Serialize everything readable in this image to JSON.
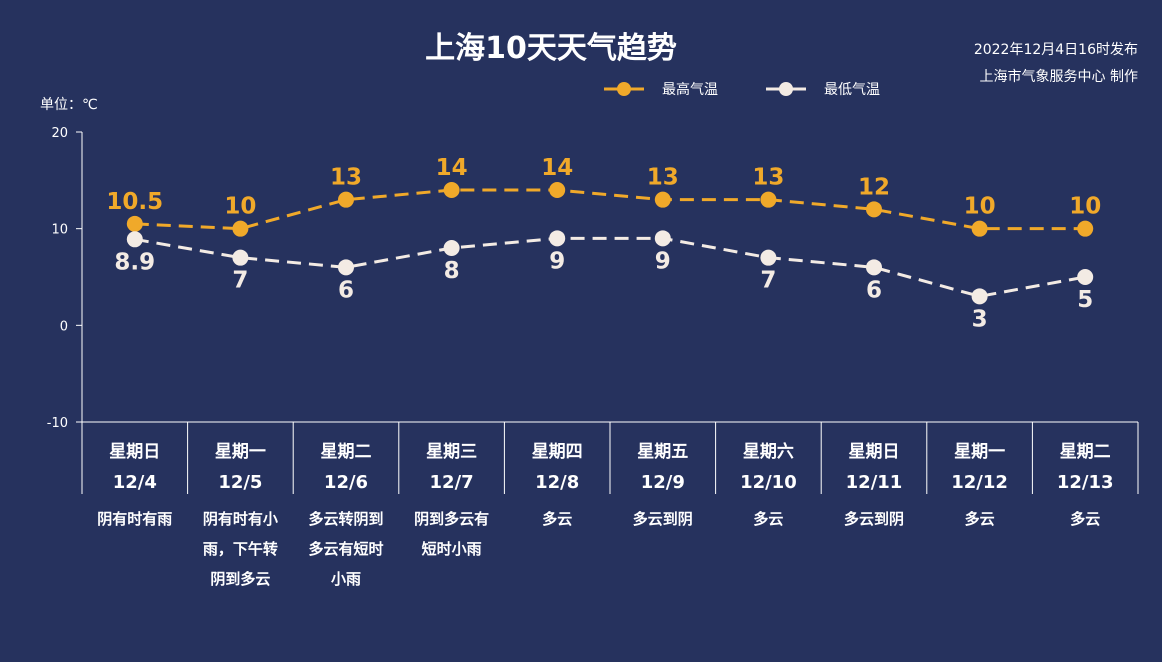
{
  "header": {
    "title": "上海10天天气趋势",
    "publish_time": "2022年12月4日16时发布",
    "producer": "上海市气象服务中心 制作",
    "unit_label": "单位：℃"
  },
  "colors": {
    "background": "#26325e",
    "high": "#f0a92a",
    "low": "#f3ebe4",
    "axis": "#ffffff"
  },
  "chart_data": {
    "type": "line",
    "ylim": [
      -10,
      20
    ],
    "yticks": [
      20,
      10,
      0,
      -10
    ],
    "grid": false,
    "legend_position": "top-right",
    "categories": [
      {
        "day": "星期日",
        "date": "12/4",
        "weather": [
          "阴有时有雨"
        ]
      },
      {
        "day": "星期一",
        "date": "12/5",
        "weather": [
          "阴有时有小",
          "雨，下午转",
          "阴到多云"
        ]
      },
      {
        "day": "星期二",
        "date": "12/6",
        "weather": [
          "多云转阴到",
          "多云有短时",
          "小雨"
        ]
      },
      {
        "day": "星期三",
        "date": "12/7",
        "weather": [
          "阴到多云有",
          "短时小雨"
        ]
      },
      {
        "day": "星期四",
        "date": "12/8",
        "weather": [
          "多云"
        ]
      },
      {
        "day": "星期五",
        "date": "12/9",
        "weather": [
          "多云到阴"
        ]
      },
      {
        "day": "星期六",
        "date": "12/10",
        "weather": [
          "多云"
        ]
      },
      {
        "day": "星期日",
        "date": "12/11",
        "weather": [
          "多云到阴"
        ]
      },
      {
        "day": "星期一",
        "date": "12/12",
        "weather": [
          "多云"
        ]
      },
      {
        "day": "星期二",
        "date": "12/13",
        "weather": [
          "多云"
        ]
      }
    ],
    "series": [
      {
        "name": "最高气温",
        "key": "high",
        "values": [
          10.5,
          10,
          13,
          14,
          14,
          13,
          13,
          12,
          10,
          10
        ]
      },
      {
        "name": "最低气温",
        "key": "low",
        "values": [
          8.9,
          7,
          6,
          8,
          9,
          9,
          7,
          6,
          3,
          5
        ]
      }
    ]
  }
}
